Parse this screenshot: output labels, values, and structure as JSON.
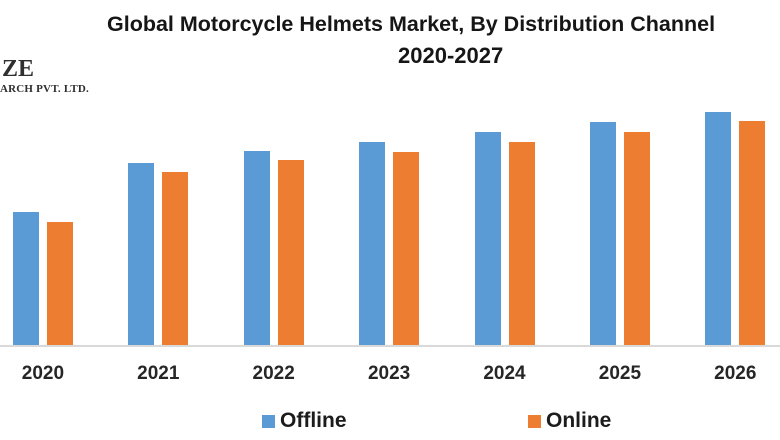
{
  "logo": {
    "line1": "ZE",
    "line2": "ARCH PVT. LTD."
  },
  "header": {
    "title": "Global Motorcycle Helmets Market, By Distribution Channel",
    "subtitle": "2020-2027"
  },
  "chart_data": {
    "type": "bar",
    "title": "Global Motorcycle Helmets Market, By Distribution Channel",
    "subtitle": "2020-2027",
    "categories": [
      "2020",
      "2021",
      "2022",
      "2023",
      "2024",
      "2025",
      "2026"
    ],
    "series": [
      {
        "name": "Offline",
        "color": "#5B9BD5",
        "values": [
          133,
          182,
          194,
          203,
          213,
          223,
          233
        ]
      },
      {
        "name": "Online",
        "color": "#ED7D31",
        "values": [
          123,
          173,
          185,
          193,
          203,
          213,
          224
        ]
      }
    ],
    "value_axis_visible": false,
    "value_units": "relative height (no value axis shown in image)",
    "ylim": [
      0,
      250
    ],
    "grid": false,
    "legend_position": "bottom",
    "axis_line_color": "#d9d9d9",
    "label_color": "#262626",
    "note": "title and final year group cropped at right edge; logo cropped at left edge"
  }
}
